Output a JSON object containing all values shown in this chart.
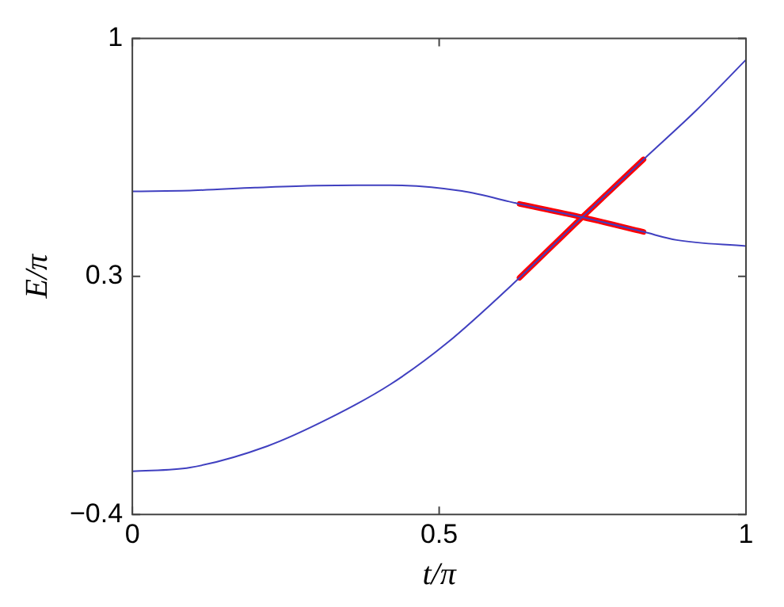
{
  "chart_data": {
    "type": "line",
    "xlabel": "t/π",
    "ylabel": "E/π",
    "xlim": [
      0,
      1
    ],
    "xticks": [
      0,
      0.5,
      1
    ],
    "ylim": [
      -0.4,
      1
    ],
    "yticks": [
      -0.4,
      0.3,
      1
    ],
    "grid": false,
    "legend": false,
    "marker": "none",
    "line_style": "solid",
    "series": [
      {
        "color": "#4040c0",
        "x": [
          0,
          0.1,
          0.2,
          0.3,
          0.42,
          0.537,
          0.631,
          0.733,
          0.833,
          0.887,
          1
        ],
        "values": [
          0.55,
          0.553,
          0.561,
          0.567,
          0.568,
          0.551,
          0.513,
          0.474,
          0.431,
          0.407,
          0.389
        ]
      },
      {
        "color": "#4040c0",
        "x": [
          0,
          0.094,
          0.22,
          0.32,
          0.42,
          0.512,
          0.631,
          0.733,
          0.833,
          0.92,
          1
        ],
        "values": [
          -0.273,
          -0.262,
          -0.199,
          -0.118,
          -0.018,
          0.103,
          0.296,
          0.474,
          0.644,
          0.79,
          0.937
        ]
      },
      {
        "color": "#ff0000",
        "x": [
          0.631,
          0.733,
          0.833
        ],
        "values": [
          0.296,
          0.474,
          0.644
        ]
      },
      {
        "color": "#ff0000",
        "x": [
          0.631,
          0.733,
          0.833
        ],
        "values": [
          0.513,
          0.474,
          0.431
        ]
      }
    ]
  }
}
